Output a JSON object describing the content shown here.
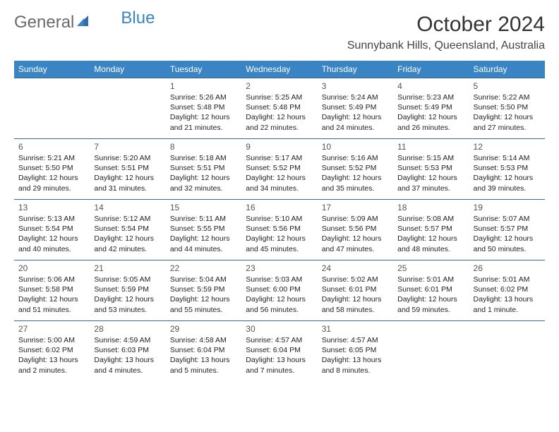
{
  "logo": {
    "part1": "General",
    "part2": "Blue"
  },
  "title": "October 2024",
  "location": "Sunnybank Hills, Queensland, Australia",
  "colors": {
    "header_bg": "#3a84c4",
    "header_text": "#ffffff",
    "row_border": "#3a6a94",
    "body_bg": "#ffffff",
    "logo_gray": "#6a6a6a",
    "logo_blue": "#3a84c4"
  },
  "font": {
    "daynum_size": 12,
    "info_size": 10.5,
    "header_size": 12,
    "title_size": 30,
    "location_size": 16
  },
  "day_labels": [
    "Sunday",
    "Monday",
    "Tuesday",
    "Wednesday",
    "Thursday",
    "Friday",
    "Saturday"
  ],
  "weeks": [
    [
      null,
      null,
      {
        "n": "1",
        "sr": "Sunrise: 5:26 AM",
        "ss": "Sunset: 5:48 PM",
        "dl": "Daylight: 12 hours and 21 minutes."
      },
      {
        "n": "2",
        "sr": "Sunrise: 5:25 AM",
        "ss": "Sunset: 5:48 PM",
        "dl": "Daylight: 12 hours and 22 minutes."
      },
      {
        "n": "3",
        "sr": "Sunrise: 5:24 AM",
        "ss": "Sunset: 5:49 PM",
        "dl": "Daylight: 12 hours and 24 minutes."
      },
      {
        "n": "4",
        "sr": "Sunrise: 5:23 AM",
        "ss": "Sunset: 5:49 PM",
        "dl": "Daylight: 12 hours and 26 minutes."
      },
      {
        "n": "5",
        "sr": "Sunrise: 5:22 AM",
        "ss": "Sunset: 5:50 PM",
        "dl": "Daylight: 12 hours and 27 minutes."
      }
    ],
    [
      {
        "n": "6",
        "sr": "Sunrise: 5:21 AM",
        "ss": "Sunset: 5:50 PM",
        "dl": "Daylight: 12 hours and 29 minutes."
      },
      {
        "n": "7",
        "sr": "Sunrise: 5:20 AM",
        "ss": "Sunset: 5:51 PM",
        "dl": "Daylight: 12 hours and 31 minutes."
      },
      {
        "n": "8",
        "sr": "Sunrise: 5:18 AM",
        "ss": "Sunset: 5:51 PM",
        "dl": "Daylight: 12 hours and 32 minutes."
      },
      {
        "n": "9",
        "sr": "Sunrise: 5:17 AM",
        "ss": "Sunset: 5:52 PM",
        "dl": "Daylight: 12 hours and 34 minutes."
      },
      {
        "n": "10",
        "sr": "Sunrise: 5:16 AM",
        "ss": "Sunset: 5:52 PM",
        "dl": "Daylight: 12 hours and 35 minutes."
      },
      {
        "n": "11",
        "sr": "Sunrise: 5:15 AM",
        "ss": "Sunset: 5:53 PM",
        "dl": "Daylight: 12 hours and 37 minutes."
      },
      {
        "n": "12",
        "sr": "Sunrise: 5:14 AM",
        "ss": "Sunset: 5:53 PM",
        "dl": "Daylight: 12 hours and 39 minutes."
      }
    ],
    [
      {
        "n": "13",
        "sr": "Sunrise: 5:13 AM",
        "ss": "Sunset: 5:54 PM",
        "dl": "Daylight: 12 hours and 40 minutes."
      },
      {
        "n": "14",
        "sr": "Sunrise: 5:12 AM",
        "ss": "Sunset: 5:54 PM",
        "dl": "Daylight: 12 hours and 42 minutes."
      },
      {
        "n": "15",
        "sr": "Sunrise: 5:11 AM",
        "ss": "Sunset: 5:55 PM",
        "dl": "Daylight: 12 hours and 44 minutes."
      },
      {
        "n": "16",
        "sr": "Sunrise: 5:10 AM",
        "ss": "Sunset: 5:56 PM",
        "dl": "Daylight: 12 hours and 45 minutes."
      },
      {
        "n": "17",
        "sr": "Sunrise: 5:09 AM",
        "ss": "Sunset: 5:56 PM",
        "dl": "Daylight: 12 hours and 47 minutes."
      },
      {
        "n": "18",
        "sr": "Sunrise: 5:08 AM",
        "ss": "Sunset: 5:57 PM",
        "dl": "Daylight: 12 hours and 48 minutes."
      },
      {
        "n": "19",
        "sr": "Sunrise: 5:07 AM",
        "ss": "Sunset: 5:57 PM",
        "dl": "Daylight: 12 hours and 50 minutes."
      }
    ],
    [
      {
        "n": "20",
        "sr": "Sunrise: 5:06 AM",
        "ss": "Sunset: 5:58 PM",
        "dl": "Daylight: 12 hours and 51 minutes."
      },
      {
        "n": "21",
        "sr": "Sunrise: 5:05 AM",
        "ss": "Sunset: 5:59 PM",
        "dl": "Daylight: 12 hours and 53 minutes."
      },
      {
        "n": "22",
        "sr": "Sunrise: 5:04 AM",
        "ss": "Sunset: 5:59 PM",
        "dl": "Daylight: 12 hours and 55 minutes."
      },
      {
        "n": "23",
        "sr": "Sunrise: 5:03 AM",
        "ss": "Sunset: 6:00 PM",
        "dl": "Daylight: 12 hours and 56 minutes."
      },
      {
        "n": "24",
        "sr": "Sunrise: 5:02 AM",
        "ss": "Sunset: 6:01 PM",
        "dl": "Daylight: 12 hours and 58 minutes."
      },
      {
        "n": "25",
        "sr": "Sunrise: 5:01 AM",
        "ss": "Sunset: 6:01 PM",
        "dl": "Daylight: 12 hours and 59 minutes."
      },
      {
        "n": "26",
        "sr": "Sunrise: 5:01 AM",
        "ss": "Sunset: 6:02 PM",
        "dl": "Daylight: 13 hours and 1 minute."
      }
    ],
    [
      {
        "n": "27",
        "sr": "Sunrise: 5:00 AM",
        "ss": "Sunset: 6:02 PM",
        "dl": "Daylight: 13 hours and 2 minutes."
      },
      {
        "n": "28",
        "sr": "Sunrise: 4:59 AM",
        "ss": "Sunset: 6:03 PM",
        "dl": "Daylight: 13 hours and 4 minutes."
      },
      {
        "n": "29",
        "sr": "Sunrise: 4:58 AM",
        "ss": "Sunset: 6:04 PM",
        "dl": "Daylight: 13 hours and 5 minutes."
      },
      {
        "n": "30",
        "sr": "Sunrise: 4:57 AM",
        "ss": "Sunset: 6:04 PM",
        "dl": "Daylight: 13 hours and 7 minutes."
      },
      {
        "n": "31",
        "sr": "Sunrise: 4:57 AM",
        "ss": "Sunset: 6:05 PM",
        "dl": "Daylight: 13 hours and 8 minutes."
      },
      null,
      null
    ]
  ]
}
